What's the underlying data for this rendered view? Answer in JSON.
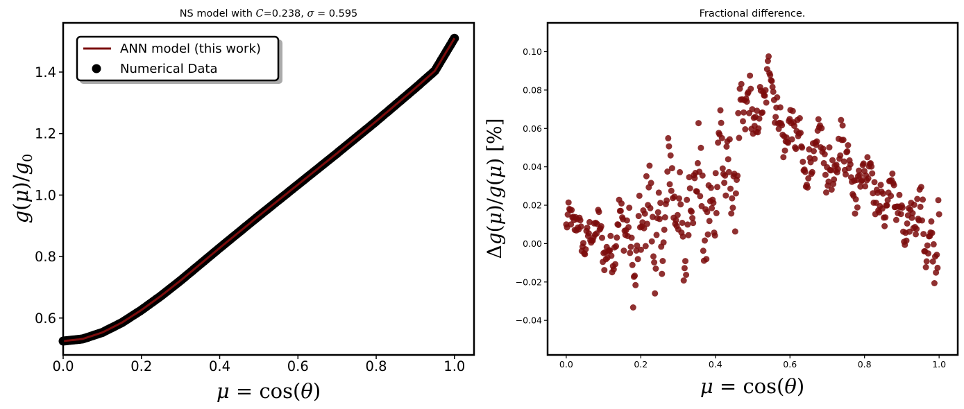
{
  "chart_data": [
    {
      "type": "line",
      "title": "NS model with C=0.238, σ = 0.595",
      "xlabel": "μ = cos(θ)",
      "ylabel": "g(μ)/g₀",
      "xlim": [
        0.0,
        1.05
      ],
      "ylim": [
        0.48,
        1.56
      ],
      "xticks": [
        "0.0",
        "0.2",
        "0.4",
        "0.6",
        "0.8",
        "1.0"
      ],
      "yticks": [
        "0.6",
        "0.8",
        "1.0",
        "1.2",
        "1.4"
      ],
      "grid": false,
      "legend_position": "top-left",
      "series": [
        {
          "name": "ANN model (this work)",
          "kind": "line",
          "color": "#7b0c0c",
          "x": [
            0.0,
            0.05,
            0.1,
            0.15,
            0.2,
            0.25,
            0.3,
            0.35,
            0.4,
            0.45,
            0.5,
            0.55,
            0.6,
            0.65,
            0.7,
            0.75,
            0.8,
            0.85,
            0.9,
            0.95,
            1.0
          ],
          "y": [
            0.525,
            0.532,
            0.553,
            0.585,
            0.626,
            0.672,
            0.722,
            0.775,
            0.828,
            0.88,
            0.932,
            0.983,
            1.034,
            1.085,
            1.136,
            1.188,
            1.24,
            1.294,
            1.348,
            1.404,
            1.51
          ]
        },
        {
          "name": "Numerical Data",
          "kind": "scatter",
          "color": "#000000",
          "x": [
            0.0,
            0.05,
            0.1,
            0.15,
            0.2,
            0.25,
            0.3,
            0.35,
            0.4,
            0.45,
            0.5,
            0.55,
            0.6,
            0.65,
            0.7,
            0.75,
            0.8,
            0.85,
            0.9,
            0.95,
            1.0
          ],
          "y": [
            0.525,
            0.532,
            0.553,
            0.585,
            0.626,
            0.672,
            0.722,
            0.775,
            0.828,
            0.88,
            0.932,
            0.983,
            1.034,
            1.085,
            1.136,
            1.188,
            1.24,
            1.294,
            1.348,
            1.404,
            1.51
          ]
        }
      ]
    },
    {
      "type": "scatter",
      "title": "Fractional difference.",
      "xlabel": "μ = cos(θ)",
      "ylabel": "Δg(μ)/g(μ)  [%]",
      "xlim": [
        -0.05,
        1.05
      ],
      "ylim": [
        -0.058,
        0.115
      ],
      "xticks": [
        "0.0",
        "0.2",
        "0.4",
        "0.6",
        "0.8",
        "1.0"
      ],
      "yticks": [
        "−0.04",
        "−0.02",
        "0.00",
        "0.02",
        "0.04",
        "0.06",
        "0.08",
        "0.10"
      ],
      "grid": false,
      "series": [
        {
          "name": "",
          "color": "#7b0c0c",
          "anchors_x": [
            0.0,
            0.05,
            0.1,
            0.15,
            0.2,
            0.25,
            0.3,
            0.35,
            0.4,
            0.45,
            0.5,
            0.55,
            0.6,
            0.65,
            0.7,
            0.75,
            0.8,
            0.85,
            0.9,
            0.95,
            1.0
          ],
          "anchors_y": [
            0.008,
            0.007,
            -0.001,
            0.005,
            0.0,
            0.015,
            0.018,
            0.02,
            0.028,
            0.045,
            0.07,
            0.08,
            0.055,
            0.045,
            0.043,
            0.043,
            0.035,
            0.025,
            0.015,
            0.01,
            0.0
          ],
          "spread": [
            0.014,
            0.015,
            0.017,
            0.022,
            0.04,
            0.04,
            0.045,
            0.045,
            0.045,
            0.04,
            0.025,
            0.022,
            0.02,
            0.02,
            0.022,
            0.025,
            0.02,
            0.018,
            0.02,
            0.022,
            0.035
          ],
          "n_points": 480
        }
      ]
    }
  ],
  "colors": {
    "model_line": "#7b0c0c",
    "data_points": "#000000",
    "residual_points": "#7b0c0c"
  }
}
